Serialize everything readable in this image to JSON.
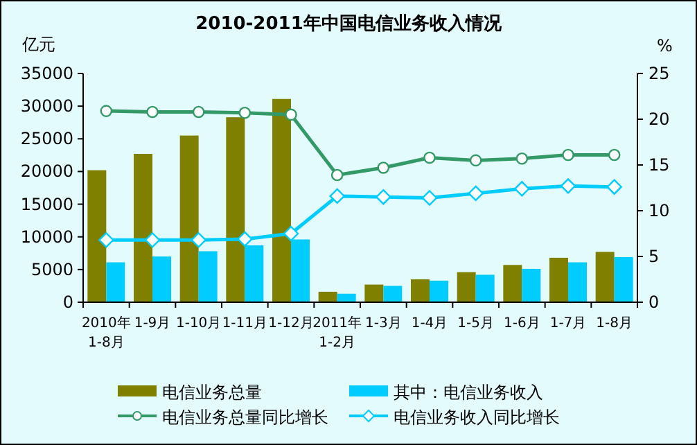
{
  "chart_data": {
    "type": "bar",
    "title": "2010-2011年中国电信业务收入情况",
    "ylabel": "亿元",
    "y2label": "%",
    "categories": [
      "2010年1-8月",
      "1-9月",
      "1-10月",
      "1-11月",
      "1-12月",
      "2011年1-2月",
      "1-3月",
      "1-4月",
      "1-5月",
      "1-6月",
      "1-7月",
      "1-8月"
    ],
    "ylim": [
      0,
      35000
    ],
    "yticks": [
      0,
      5000,
      10000,
      15000,
      20000,
      25000,
      30000,
      35000
    ],
    "y2lim": [
      0,
      25
    ],
    "y2ticks": [
      0,
      5,
      10,
      15,
      20,
      25
    ],
    "grid": false,
    "legend": "bottom",
    "series": [
      {
        "name": "电信业务总量",
        "color": "#808000",
        "values": [
          20200,
          22700,
          25500,
          28300,
          31100,
          1600,
          2700,
          3500,
          4600,
          5700,
          6800,
          7700
        ]
      },
      {
        "name": "其中：电信业务收入",
        "color": "#00ccff",
        "values": [
          6100,
          7000,
          7800,
          8700,
          9600,
          1300,
          2500,
          3300,
          4200,
          5100,
          6100,
          6900
        ]
      },
      {
        "name": "电信业务总量同比增长",
        "type": "line",
        "axis": "y2",
        "marker": "circle",
        "color": "#339966",
        "values": [
          20.9,
          20.8,
          20.8,
          20.7,
          20.5,
          13.9,
          14.7,
          15.8,
          15.5,
          15.7,
          16.1,
          16.1
        ]
      },
      {
        "name": "电信业务收入同比增长",
        "type": "line",
        "axis": "y2",
        "marker": "diamond",
        "color": "#00ccff",
        "values": [
          6.8,
          6.8,
          6.8,
          6.9,
          7.5,
          11.6,
          11.5,
          11.4,
          11.9,
          12.4,
          12.7,
          12.6
        ]
      }
    ]
  }
}
